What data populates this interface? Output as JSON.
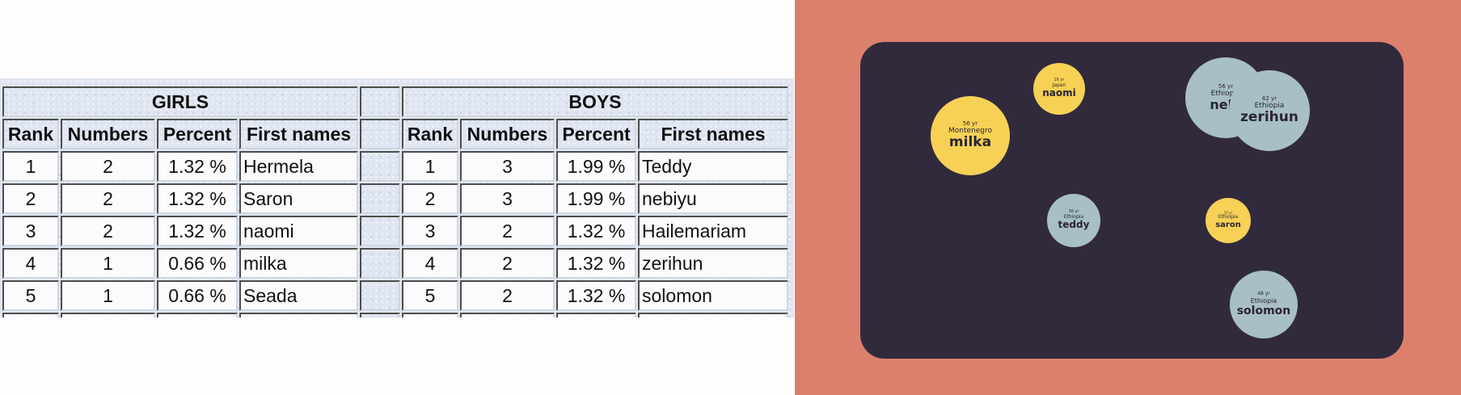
{
  "table": {
    "girls_title": "GIRLS",
    "boys_title": "BOYS",
    "columns": [
      "Rank",
      "Numbers",
      "Percent",
      "First names"
    ],
    "girls": [
      {
        "rank": "1",
        "number": "2",
        "percent": "1.32 %",
        "name": "Hermela"
      },
      {
        "rank": "2",
        "number": "2",
        "percent": "1.32 %",
        "name": "Saron"
      },
      {
        "rank": "3",
        "number": "2",
        "percent": "1.32 %",
        "name": "naomi"
      },
      {
        "rank": "4",
        "number": "1",
        "percent": "0.66 %",
        "name": "milka"
      },
      {
        "rank": "5",
        "number": "1",
        "percent": "0.66 %",
        "name": "Seada"
      }
    ],
    "boys": [
      {
        "rank": "1",
        "number": "3",
        "percent": "1.99 %",
        "name": "Teddy"
      },
      {
        "rank": "2",
        "number": "3",
        "percent": "1.99 %",
        "name": "nebiyu"
      },
      {
        "rank": "3",
        "number": "2",
        "percent": "1.32 %",
        "name": "Hailemariam"
      },
      {
        "rank": "4",
        "number": "2",
        "percent": "1.32 %",
        "name": "zerihun"
      },
      {
        "rank": "5",
        "number": "2",
        "percent": "1.32 %",
        "name": "solomon"
      }
    ]
  },
  "bubbles": [
    {
      "name": "milka",
      "country": "Montenegro",
      "age": "56 yr",
      "color": "#f6d155"
    },
    {
      "name": "naomi",
      "country": "Japan",
      "age": "16 yr",
      "color": "#f6d155"
    },
    {
      "name": "nebi",
      "country": "Ethiopia",
      "age": "56 yr",
      "color": "#a8bfc6"
    },
    {
      "name": "zerihun",
      "country": "Ethiopia",
      "age": "62 yr",
      "color": "#a8bfc6"
    },
    {
      "name": "teddy",
      "country": "Ethiopia",
      "age": "36 yr",
      "color": "#a8bfc6"
    },
    {
      "name": "saron",
      "country": "Ethiopia",
      "age": "17 yr",
      "color": "#f6d155"
    },
    {
      "name": "solomon",
      "country": "Ethiopia",
      "age": "48 yr",
      "color": "#a8bfc6"
    }
  ],
  "colors": {
    "panel_background": "#db806c",
    "card_background": "#312a3d",
    "bubble_yellow": "#f6d155",
    "bubble_grey_blue": "#a8bfc6"
  }
}
